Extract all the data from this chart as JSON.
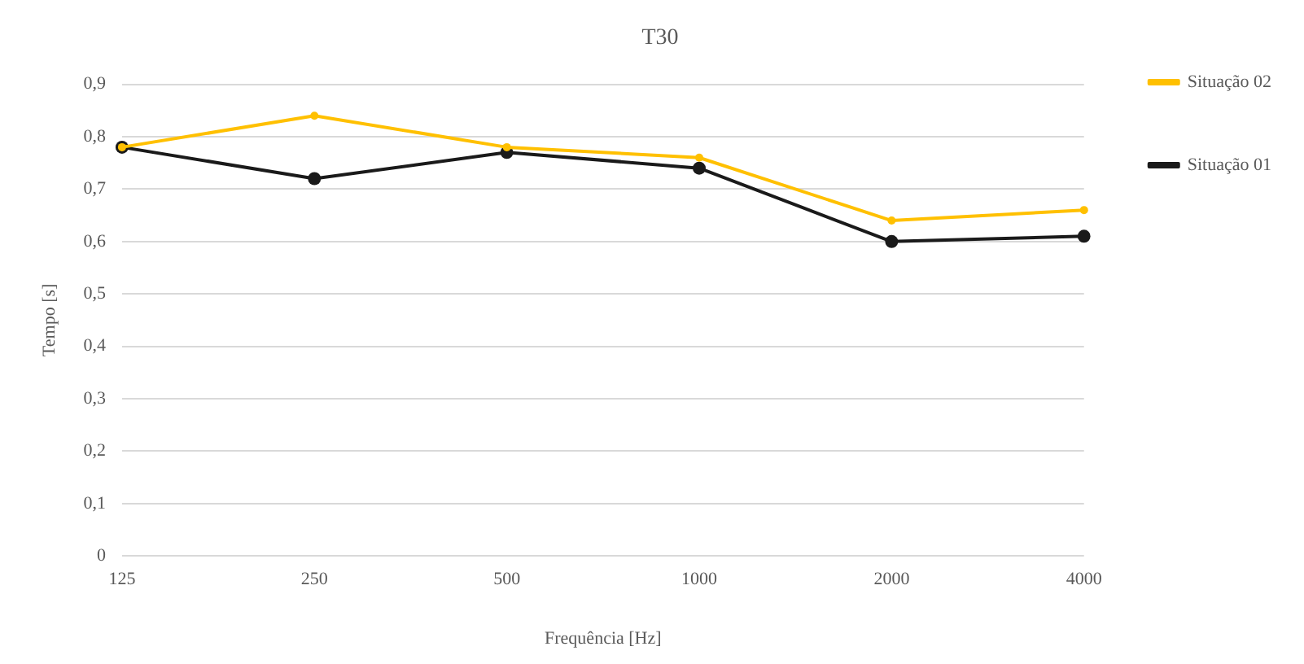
{
  "chart_data": {
    "type": "line",
    "title": "T30",
    "xlabel": "Frequência [Hz]",
    "ylabel": "Tempo [s]",
    "categories": [
      "125",
      "250",
      "500",
      "1000",
      "2000",
      "4000"
    ],
    "series": [
      {
        "name": "Situação 01",
        "color": "#1a1a1a",
        "values": [
          0.78,
          0.72,
          0.77,
          0.74,
          0.6,
          0.61
        ]
      },
      {
        "name": "Situação 02",
        "color": "#ffc000",
        "values": [
          0.78,
          0.84,
          0.78,
          0.76,
          0.64,
          0.66
        ]
      }
    ],
    "ylim": [
      0,
      0.9
    ],
    "yticks": [
      0,
      {
        "value": 0.1,
        "label": "0,1"
      },
      {
        "value": 0.2,
        "label": "0,2"
      },
      {
        "value": 0.3,
        "label": "0,3"
      },
      {
        "value": 0.4,
        "label": "0,4"
      },
      {
        "value": 0.5,
        "label": "0,5"
      },
      {
        "value": 0.6,
        "label": "0,6"
      },
      {
        "value": 0.7,
        "label": "0,7"
      },
      {
        "value": 0.8,
        "label": "0,8"
      },
      {
        "value": 0.9,
        "label": "0,9"
      }
    ],
    "grid": "y",
    "legend": "right",
    "marker": "circle",
    "line_style": "solid"
  }
}
